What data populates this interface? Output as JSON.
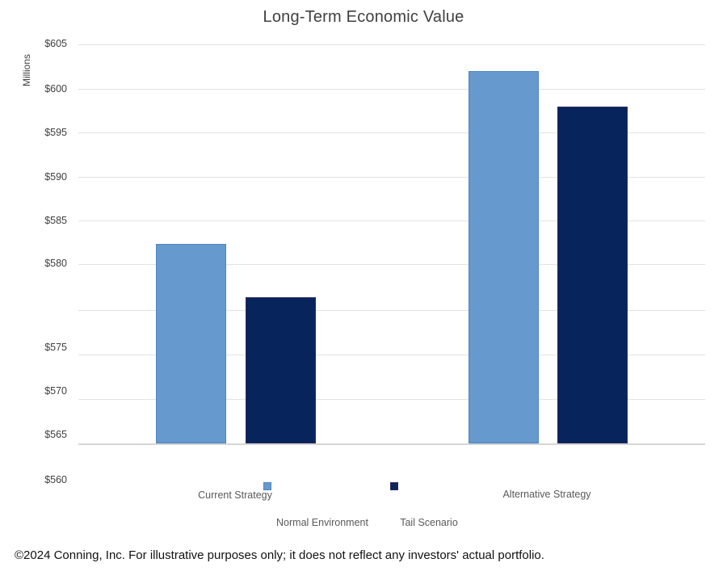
{
  "chart_data": {
    "type": "bar",
    "title": "Long-Term Economic Value",
    "ylabel": "Millions",
    "xlabel": "",
    "categories": [
      "Current Strategy",
      "Alternative Strategy"
    ],
    "series": [
      {
        "name": "Normal Environment",
        "color": "#6699CE",
        "border_color": "#5186C0",
        "values": [
          582.5,
          602
        ]
      },
      {
        "name": "Tail Scenario",
        "color": "#08245C",
        "border_color": "#2E2A5E",
        "values": [
          576.5,
          598
        ]
      }
    ],
    "y_axis": {
      "tick_labels": [
        "$605",
        "$600",
        "$595",
        "$590",
        "$585",
        "$580",
        "$575",
        "$570",
        "$565",
        "$560"
      ],
      "units_label": "Millions",
      "layout_note": "one unlabeled gridline sits between the $580 and $575 labels; $560 label sits below the plot baseline"
    },
    "ylim": [
      560,
      605
    ],
    "grid": true,
    "legend_position": "bottom"
  },
  "footer": {
    "text": "©2024 Conning, Inc. For illustrative purposes only; it does not reflect any investors' actual portfolio."
  }
}
